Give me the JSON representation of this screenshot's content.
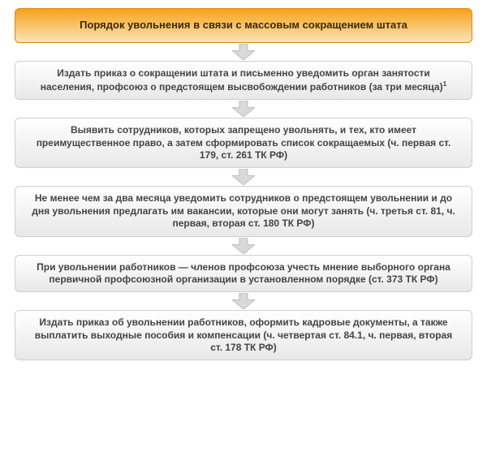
{
  "flowchart": {
    "type": "flowchart",
    "background_color": "#ffffff",
    "box_border_radius": 6,
    "arrow_color": "#d9d9d9",
    "arrow_stroke": "#bfbfbf",
    "arrow_width": 28,
    "arrow_height": 20,
    "font_family": "Arial",
    "title": {
      "text": "Порядок увольнения в связи с массовым сокращением штата",
      "fontsize": 13,
      "font_weight": "bold",
      "bg_gradient_top": "#f6a21a",
      "bg_gradient_bottom": "#fbe3b9",
      "border_color": "#d98c10",
      "text_color": "#3a2a00"
    },
    "step_style": {
      "fontsize": 12,
      "font_weight": "bold",
      "bg_gradient_top": "#ffffff",
      "bg_gradient_bottom": "#e8e8e8",
      "border_color": "#cfcfcf",
      "text_color": "#444444"
    },
    "steps": [
      {
        "text": "Издать приказ о сокращении штата и письменно уведомить орган занятости населения, профсоюз о предстоящем высвобождении работников (за три месяца)",
        "footnote": "1"
      },
      {
        "text": "Выявить сотрудников, которых запрещено увольнять, и тех, кто имеет преимущественное право, а затем сформировать список сокращаемых (ч. первая ст. 179, ст. 261 ТК РФ)"
      },
      {
        "text": "Не менее чем за два месяца уведомить сотрудников о предстоящем увольнении и до дня увольнения предлагать им вакансии, которые они могут занять (ч. третья ст. 81, ч. первая, вторая ст. 180 ТК РФ)"
      },
      {
        "text": "При увольнении работников — членов профсоюза учесть мнение выборного органа первичной профсоюзной организации в установленном порядке (ст. 373 ТК РФ)"
      },
      {
        "text": "Издать приказ об увольнении работников, оформить кадровые документы, а также выплатить выходные пособия и компенсации (ч. четвертая ст. 84.1, ч. первая, вторая ст. 178 ТК РФ)"
      }
    ]
  }
}
